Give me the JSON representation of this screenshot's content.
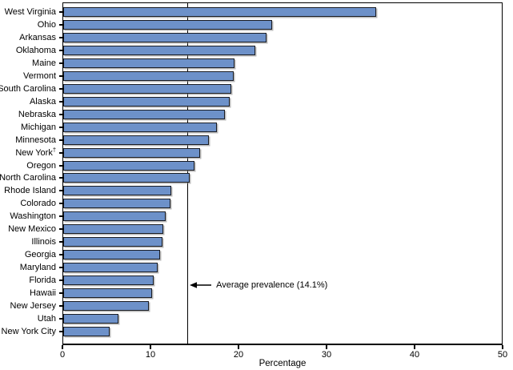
{
  "chart_data": {
    "type": "bar",
    "orientation": "horizontal",
    "title": "",
    "xlabel": "Percentage",
    "xlim": [
      0,
      50
    ],
    "xticks": [
      0,
      10,
      20,
      30,
      40,
      50
    ],
    "grid": false,
    "legend": "none",
    "categories": [
      "West Virginia",
      "Ohio",
      "Arkansas",
      "Oklahoma",
      "Maine",
      "Vermont",
      "South Carolina",
      "Alaska",
      "Nebraska",
      "Michigan",
      "Minnesota",
      "New York",
      "Oregon",
      "North Carolina",
      "Rhode Island",
      "Colorado",
      "Washington",
      "New Mexico",
      "Illinois",
      "Georgia",
      "Maryland",
      "Florida",
      "Hawaii",
      "New Jersey",
      "Utah",
      "New York City"
    ],
    "category_superscripts": {
      "New York": "†"
    },
    "values": [
      35.7,
      23.8,
      23.2,
      21.9,
      19.5,
      19.4,
      19.2,
      19.0,
      18.4,
      17.5,
      16.6,
      15.6,
      15.0,
      14.4,
      12.3,
      12.2,
      11.7,
      11.4,
      11.3,
      11.0,
      10.8,
      10.3,
      10.1,
      9.8,
      6.3,
      5.3
    ],
    "average_line": {
      "value": 14.1,
      "label": "Average prevalence (14.1%)"
    },
    "colors": {
      "bar_fill": "#6d91c9",
      "bar_border": "#1a1d24",
      "axis": "#000000"
    }
  }
}
